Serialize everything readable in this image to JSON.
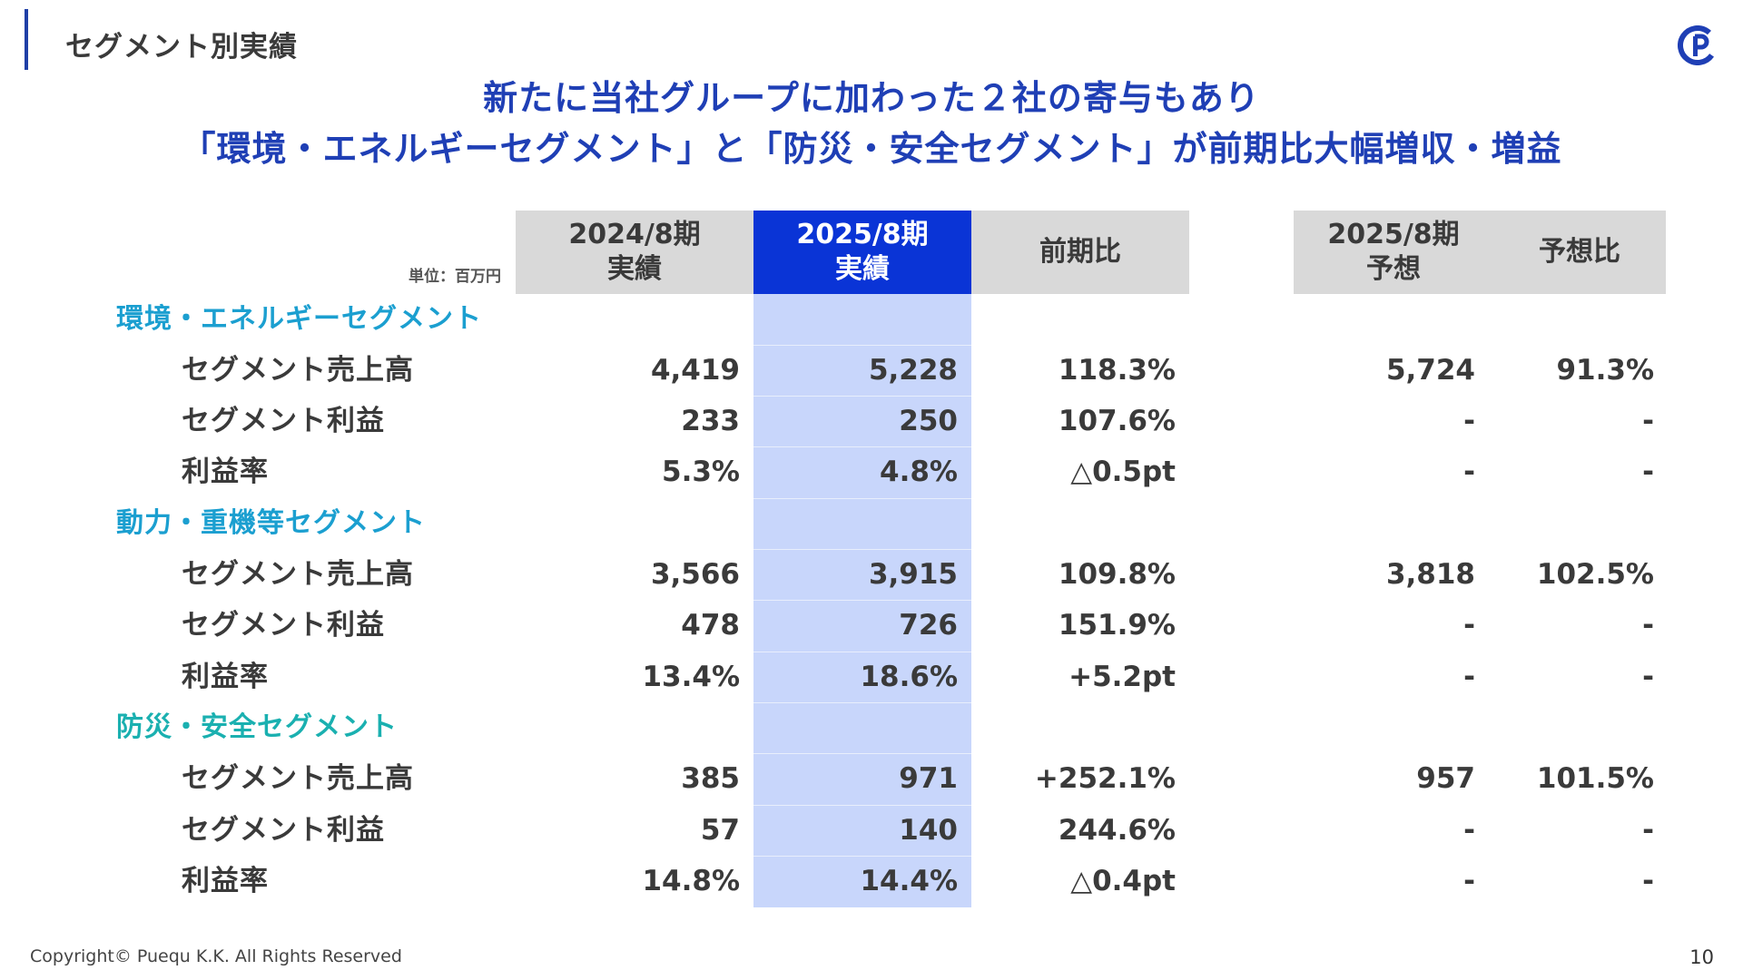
{
  "header": {
    "section_title": "セグメント別実績",
    "headline_line1": "新たに当社グループに加わった２社の寄与もあり",
    "headline_line2": "「環境・エネルギーセグメント」と「防災・安全セグメント」が前期比大幅増収・増益",
    "logo_icon": "pueq-logo-icon"
  },
  "colors": {
    "brand_blue": "#1f3fb5",
    "highlight_header": "#0a34d6",
    "highlight_column": "#c8d6fb",
    "header_gray": "#d9d9d9",
    "segment_blue": "#1b9fd0",
    "segment_teal": "#1ab0b0"
  },
  "table": {
    "unit": "単位：百万円",
    "columns": [
      {
        "line1": "2024/8期",
        "line2": "実績"
      },
      {
        "line1": "2025/8期",
        "line2": "実績"
      },
      {
        "line1": "前期比",
        "line2": ""
      },
      {
        "line1": "2025/8期",
        "line2": "予想"
      },
      {
        "line1": "予想比",
        "line2": ""
      }
    ],
    "segments": [
      {
        "name": "環境・エネルギーセグメント",
        "rows": [
          {
            "label": "セグメント売上高",
            "prev": "4,419",
            "curr": "5,228",
            "yoy": "118.3%",
            "forecast": "5,724",
            "vs_forecast": "91.3%"
          },
          {
            "label": "セグメント利益",
            "prev": "233",
            "curr": "250",
            "yoy": "107.6%",
            "forecast": "-",
            "vs_forecast": "-"
          },
          {
            "label": "利益率",
            "prev": "5.3%",
            "curr": "4.8%",
            "yoy": "△0.5pt",
            "forecast": "-",
            "vs_forecast": "-"
          }
        ]
      },
      {
        "name": "動力・重機等セグメント",
        "rows": [
          {
            "label": "セグメント売上高",
            "prev": "3,566",
            "curr": "3,915",
            "yoy": "109.8%",
            "forecast": "3,818",
            "vs_forecast": "102.5%"
          },
          {
            "label": "セグメント利益",
            "prev": "478",
            "curr": "726",
            "yoy": "151.9%",
            "forecast": "-",
            "vs_forecast": "-"
          },
          {
            "label": "利益率",
            "prev": "13.4%",
            "curr": "18.6%",
            "yoy": "+5.2pt",
            "forecast": "-",
            "vs_forecast": "-"
          }
        ]
      },
      {
        "name": "防災・安全セグメント",
        "rows": [
          {
            "label": "セグメント売上高",
            "prev": "385",
            "curr": "971",
            "yoy": "+252.1%",
            "forecast": "957",
            "vs_forecast": "101.5%"
          },
          {
            "label": "セグメント利益",
            "prev": "57",
            "curr": "140",
            "yoy": "244.6%",
            "forecast": "-",
            "vs_forecast": "-"
          },
          {
            "label": "利益率",
            "prev": "14.8%",
            "curr": "14.4%",
            "yoy": "△0.4pt",
            "forecast": "-",
            "vs_forecast": "-"
          }
        ]
      }
    ]
  },
  "footer": {
    "copyright": "Copyright© Puequ K.K. All Rights Reserved",
    "page_number": "10"
  }
}
